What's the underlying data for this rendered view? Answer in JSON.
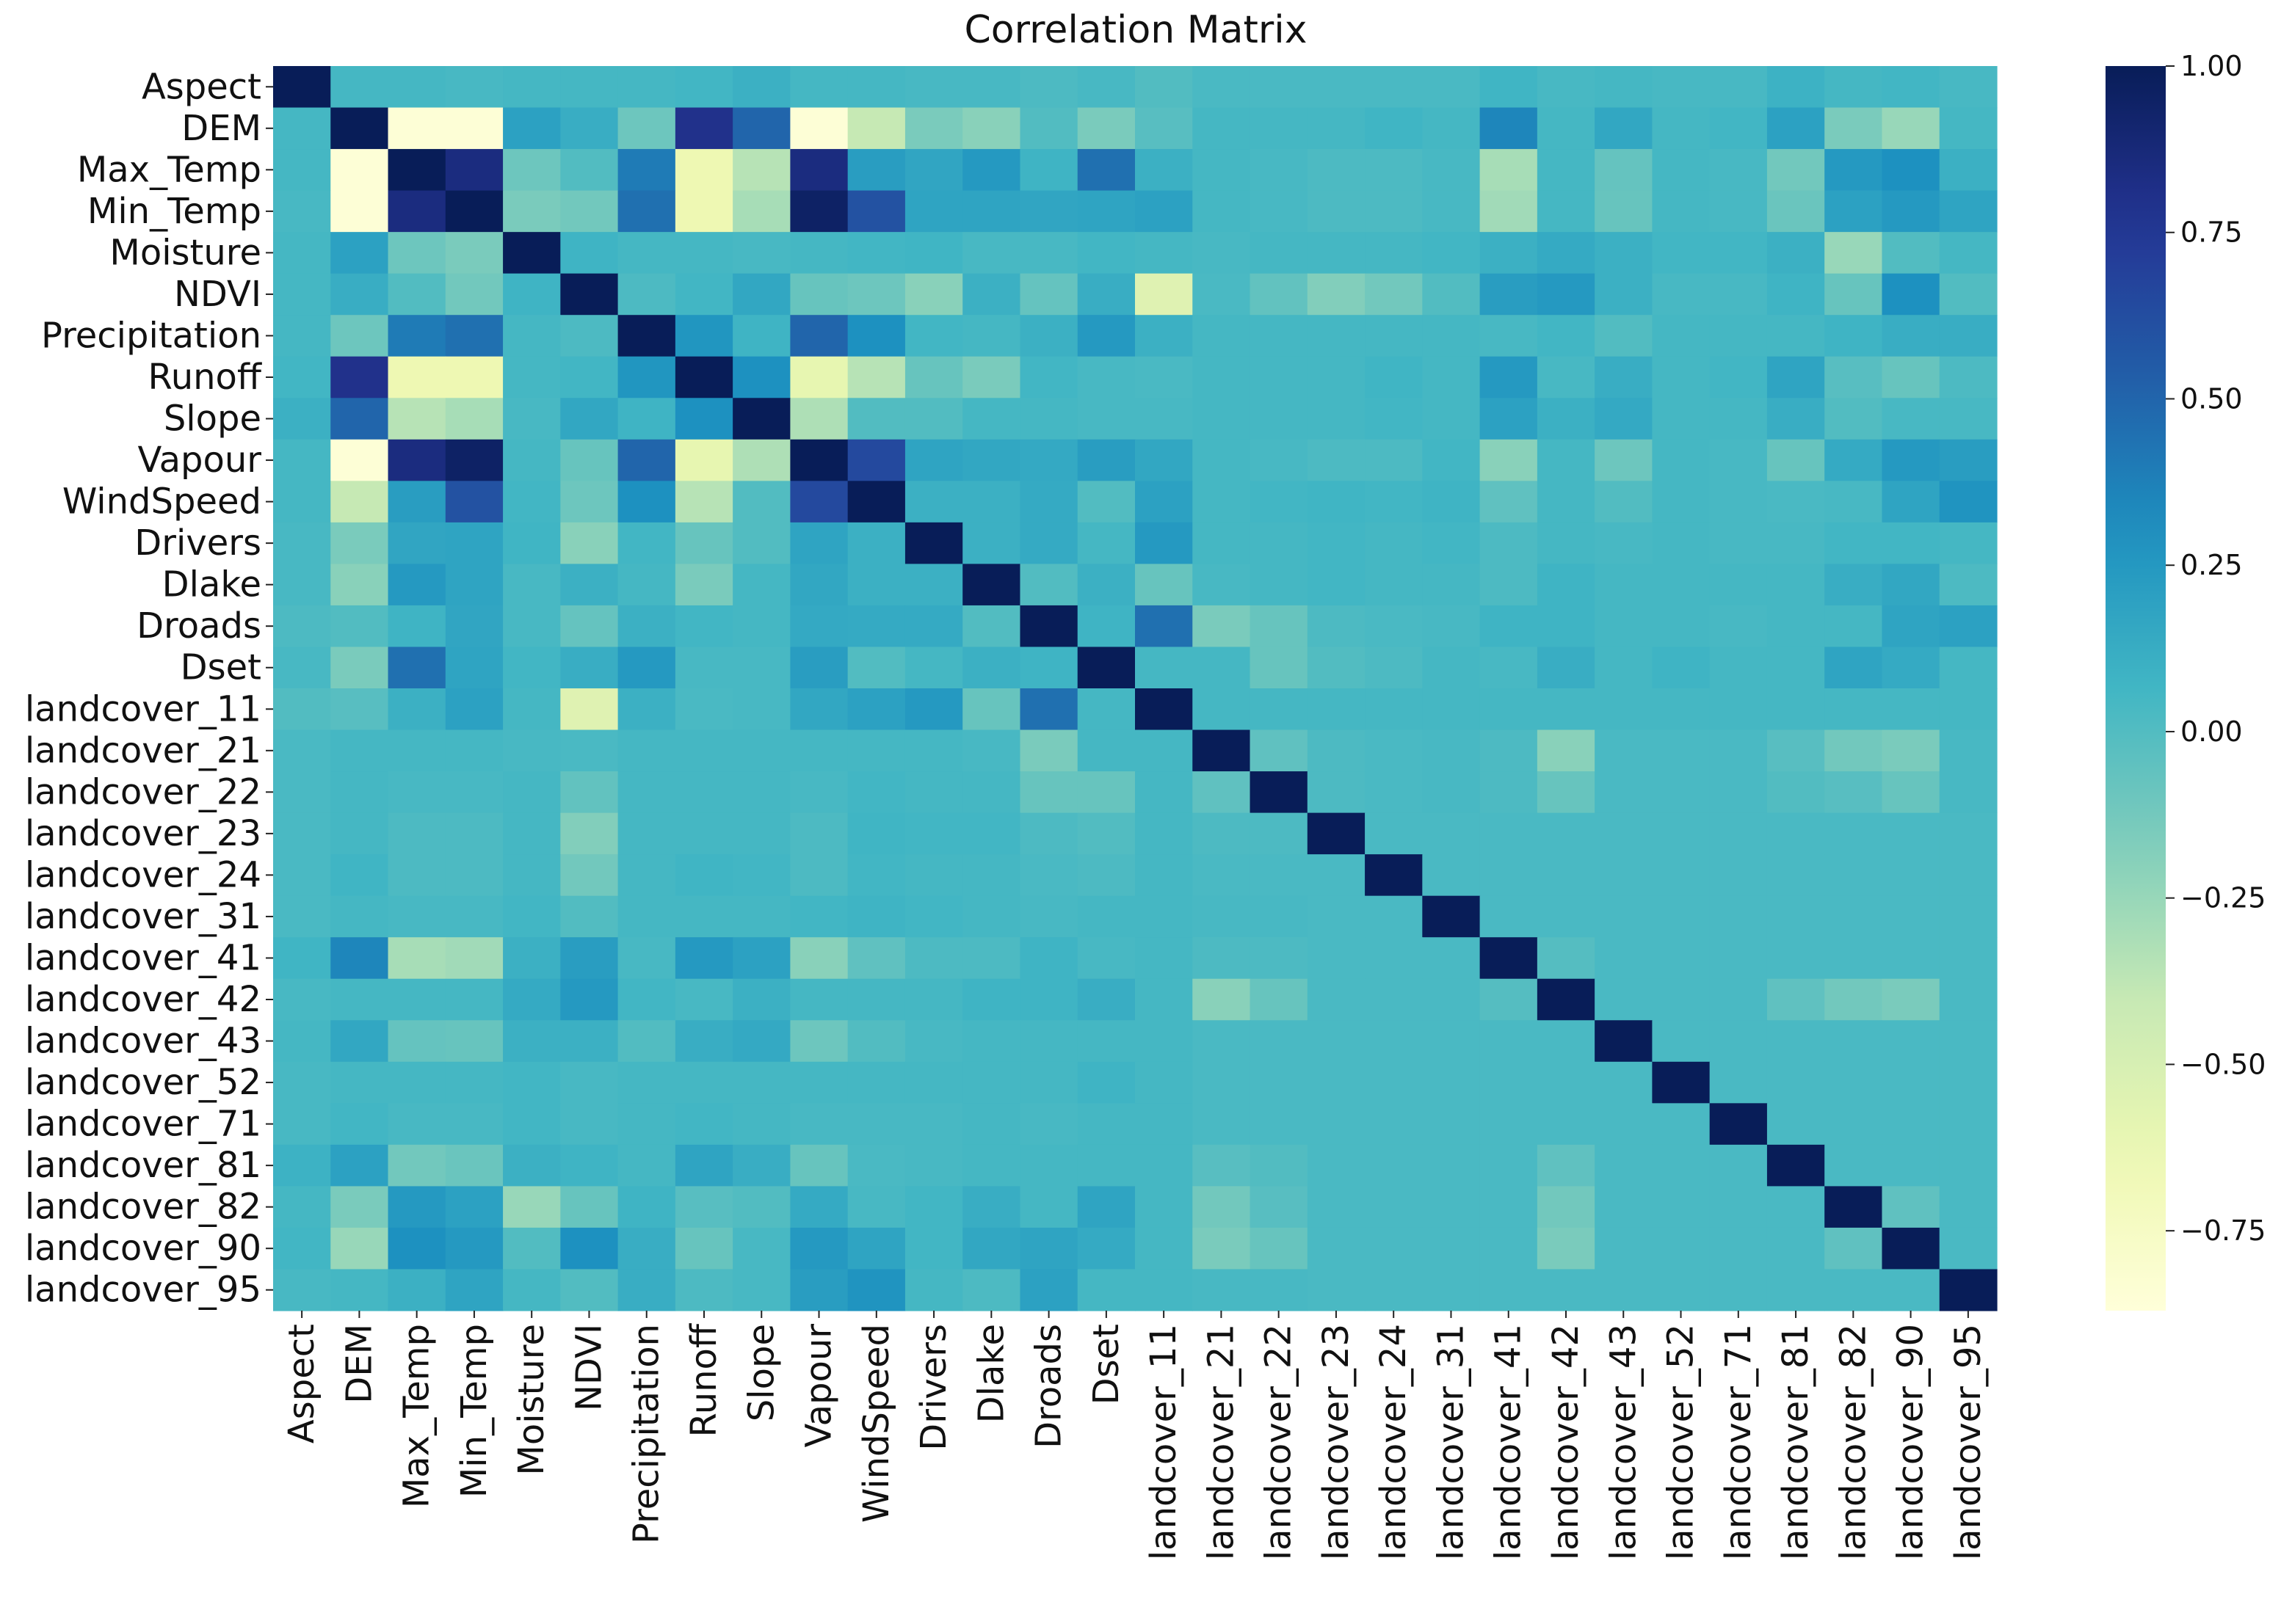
{
  "chart_data": {
    "type": "heatmap",
    "title": "Correlation Matrix",
    "xlabel": "",
    "ylabel": "",
    "colormap": "YlGnBu",
    "vmin": -0.87,
    "vmax": 1.0,
    "colorbar_ticks": [
      -0.75,
      -0.5,
      -0.25,
      0.0,
      0.25,
      0.5,
      0.75,
      1.0
    ],
    "colorbar_tick_labels": [
      "−0.75",
      "−0.50",
      "−0.25",
      "0.00",
      "0.25",
      "0.50",
      "0.75",
      "1.00"
    ],
    "labels": [
      "Aspect",
      "DEM",
      "Max_Temp",
      "Min_Temp",
      "Moisture",
      "NDVI",
      "Precipitation",
      "Runoff",
      "Slope",
      "Vapour",
      "WindSpeed",
      "Drivers",
      "Dlake",
      "Droads",
      "Dset",
      "landcover_11",
      "landcover_21",
      "landcover_22",
      "landcover_23",
      "landcover_24",
      "landcover_31",
      "landcover_41",
      "landcover_42",
      "landcover_43",
      "landcover_52",
      "landcover_71",
      "landcover_81",
      "landcover_82",
      "landcover_90",
      "landcover_95"
    ],
    "matrix": [
      [
        1.0,
        0.05,
        0.05,
        0.04,
        0.05,
        0.05,
        0.05,
        0.06,
        0.1,
        0.05,
        0.05,
        0.04,
        0.04,
        0.02,
        0.04,
        0.0,
        0.03,
        0.03,
        0.03,
        0.03,
        0.03,
        0.07,
        0.04,
        0.05,
        0.04,
        0.04,
        0.09,
        0.05,
        0.06,
        0.04
      ],
      [
        0.05,
        1.0,
        -0.85,
        -0.85,
        0.2,
        0.12,
        -0.1,
        0.8,
        0.5,
        -0.85,
        -0.4,
        -0.15,
        -0.2,
        0.0,
        -0.15,
        -0.02,
        0.05,
        0.05,
        0.05,
        0.07,
        0.05,
        0.35,
        0.05,
        0.16,
        0.05,
        0.06,
        0.2,
        -0.15,
        -0.25,
        0.05
      ],
      [
        0.05,
        -0.85,
        1.0,
        0.85,
        -0.1,
        0.0,
        0.4,
        -0.65,
        -0.35,
        0.85,
        0.22,
        0.17,
        0.25,
        0.08,
        0.45,
        0.1,
        0.05,
        0.04,
        0.02,
        0.02,
        0.04,
        -0.3,
        0.05,
        -0.07,
        0.05,
        0.04,
        -0.12,
        0.25,
        0.3,
        0.1
      ],
      [
        0.04,
        -0.85,
        0.85,
        1.0,
        -0.15,
        -0.12,
        0.45,
        -0.65,
        -0.3,
        0.95,
        0.6,
        0.18,
        0.18,
        0.17,
        0.18,
        0.2,
        0.05,
        0.04,
        0.02,
        0.02,
        0.04,
        -0.28,
        0.05,
        -0.08,
        0.05,
        0.04,
        -0.09,
        0.2,
        0.25,
        0.18
      ],
      [
        0.05,
        0.2,
        -0.1,
        -0.15,
        1.0,
        0.08,
        0.05,
        0.05,
        0.04,
        0.05,
        0.06,
        0.07,
        0.04,
        0.04,
        0.06,
        0.05,
        0.04,
        0.05,
        0.05,
        0.05,
        0.06,
        0.1,
        0.14,
        0.1,
        0.06,
        0.06,
        0.1,
        -0.25,
        0.0,
        0.05
      ],
      [
        0.05,
        0.12,
        0.0,
        -0.12,
        0.08,
        1.0,
        0.02,
        0.06,
        0.16,
        -0.08,
        -0.1,
        -0.2,
        0.1,
        -0.07,
        0.12,
        -0.55,
        0.03,
        -0.06,
        -0.18,
        -0.12,
        0.0,
        0.22,
        0.25,
        0.1,
        0.04,
        0.04,
        0.08,
        -0.08,
        0.3,
        0.0
      ],
      [
        0.05,
        -0.1,
        0.4,
        0.45,
        0.05,
        0.02,
        1.0,
        0.27,
        0.08,
        0.5,
        0.3,
        0.06,
        0.05,
        0.1,
        0.25,
        0.1,
        0.05,
        0.05,
        0.05,
        0.05,
        0.05,
        0.04,
        0.06,
        0.0,
        0.05,
        0.05,
        0.05,
        0.08,
        0.12,
        0.12
      ],
      [
        0.06,
        0.8,
        -0.65,
        -0.65,
        0.05,
        0.06,
        0.27,
        1.0,
        0.3,
        -0.6,
        -0.35,
        -0.08,
        -0.15,
        0.06,
        0.04,
        0.03,
        0.05,
        0.05,
        0.05,
        0.07,
        0.05,
        0.25,
        0.04,
        0.12,
        0.05,
        0.06,
        0.18,
        -0.02,
        -0.08,
        0.02
      ],
      [
        0.1,
        0.5,
        -0.35,
        -0.3,
        0.04,
        0.16,
        0.08,
        0.3,
        1.0,
        -0.32,
        0.0,
        0.0,
        0.05,
        0.05,
        0.04,
        0.04,
        0.05,
        0.05,
        0.05,
        0.06,
        0.05,
        0.2,
        0.1,
        0.15,
        0.05,
        0.05,
        0.12,
        0.0,
        0.04,
        0.04
      ],
      [
        0.05,
        -0.85,
        0.85,
        0.95,
        0.05,
        -0.08,
        0.5,
        -0.6,
        -0.32,
        1.0,
        0.65,
        0.18,
        0.16,
        0.15,
        0.22,
        0.16,
        0.05,
        0.04,
        0.02,
        0.02,
        0.06,
        -0.2,
        0.05,
        -0.1,
        0.05,
        0.04,
        -0.08,
        0.14,
        0.25,
        0.22
      ],
      [
        0.05,
        -0.4,
        0.22,
        0.6,
        0.06,
        -0.1,
        0.3,
        -0.35,
        0.0,
        0.65,
        1.0,
        0.1,
        0.1,
        0.14,
        0.0,
        0.2,
        0.05,
        0.06,
        0.07,
        0.06,
        0.08,
        -0.05,
        0.05,
        0.0,
        0.05,
        0.04,
        0.03,
        0.04,
        0.18,
        0.28
      ],
      [
        0.04,
        -0.15,
        0.17,
        0.18,
        0.07,
        -0.2,
        0.06,
        -0.08,
        0.0,
        0.18,
        0.1,
        1.0,
        0.1,
        0.14,
        0.05,
        0.25,
        0.05,
        0.05,
        0.06,
        0.05,
        0.06,
        0.02,
        0.05,
        0.04,
        0.05,
        0.04,
        0.04,
        0.06,
        0.06,
        0.05
      ],
      [
        0.04,
        -0.2,
        0.25,
        0.18,
        0.04,
        0.1,
        0.05,
        -0.15,
        0.05,
        0.16,
        0.1,
        0.1,
        1.0,
        0.0,
        0.1,
        -0.08,
        0.04,
        0.05,
        0.06,
        0.05,
        0.05,
        0.02,
        0.08,
        0.05,
        0.05,
        0.05,
        0.05,
        0.12,
        0.16,
        0.02
      ],
      [
        0.02,
        0.0,
        0.08,
        0.17,
        0.04,
        -0.07,
        0.1,
        0.06,
        0.05,
        0.15,
        0.14,
        0.14,
        0.0,
        1.0,
        0.08,
        0.45,
        -0.15,
        -0.08,
        0.02,
        0.03,
        0.04,
        0.08,
        0.08,
        0.05,
        0.05,
        0.04,
        0.05,
        0.05,
        0.18,
        0.2
      ],
      [
        0.04,
        -0.15,
        0.45,
        0.18,
        0.06,
        0.12,
        0.25,
        0.04,
        0.04,
        0.22,
        0.0,
        0.05,
        0.1,
        0.08,
        1.0,
        0.05,
        0.05,
        -0.08,
        0.0,
        0.02,
        0.05,
        0.04,
        0.12,
        0.05,
        0.08,
        0.05,
        0.05,
        0.18,
        0.14,
        0.05
      ],
      [
        0.0,
        -0.02,
        0.1,
        0.2,
        0.05,
        -0.55,
        0.1,
        0.03,
        0.04,
        0.16,
        0.2,
        0.25,
        -0.08,
        0.45,
        0.05,
        1.0,
        0.05,
        0.05,
        0.05,
        0.05,
        0.05,
        0.05,
        0.05,
        0.05,
        0.05,
        0.05,
        0.05,
        0.05,
        0.05,
        0.05
      ],
      [
        0.03,
        0.05,
        0.05,
        0.05,
        0.04,
        0.03,
        0.05,
        0.05,
        0.05,
        0.05,
        0.05,
        0.05,
        0.04,
        -0.15,
        0.05,
        0.05,
        1.0,
        -0.05,
        0.02,
        0.03,
        0.04,
        0.02,
        -0.2,
        0.03,
        0.03,
        0.03,
        -0.02,
        -0.12,
        -0.15,
        0.04
      ],
      [
        0.03,
        0.05,
        0.04,
        0.04,
        0.05,
        -0.06,
        0.05,
        0.05,
        0.05,
        0.04,
        0.06,
        0.05,
        0.05,
        -0.08,
        -0.08,
        0.05,
        -0.05,
        1.0,
        0.02,
        0.03,
        0.04,
        0.02,
        -0.08,
        0.03,
        0.03,
        0.03,
        0.0,
        -0.02,
        -0.08,
        0.04
      ],
      [
        0.03,
        0.05,
        0.02,
        0.02,
        0.05,
        -0.18,
        0.05,
        0.05,
        0.05,
        0.02,
        0.07,
        0.06,
        0.06,
        0.02,
        0.0,
        0.05,
        0.02,
        0.02,
        1.0,
        0.03,
        0.03,
        0.03,
        0.03,
        0.03,
        0.03,
        0.03,
        0.03,
        0.03,
        0.03,
        0.03
      ],
      [
        0.03,
        0.07,
        0.02,
        0.02,
        0.05,
        -0.12,
        0.05,
        0.07,
        0.06,
        0.02,
        0.06,
        0.05,
        0.05,
        0.03,
        0.02,
        0.05,
        0.03,
        0.03,
        0.03,
        1.0,
        0.03,
        0.03,
        0.03,
        0.03,
        0.03,
        0.03,
        0.03,
        0.03,
        0.03,
        0.03
      ],
      [
        0.03,
        0.05,
        0.04,
        0.04,
        0.06,
        0.0,
        0.05,
        0.05,
        0.05,
        0.06,
        0.08,
        0.06,
        0.05,
        0.04,
        0.05,
        0.05,
        0.04,
        0.04,
        0.03,
        0.03,
        1.0,
        0.03,
        0.03,
        0.03,
        0.03,
        0.03,
        0.03,
        0.03,
        0.03,
        0.03
      ],
      [
        0.07,
        0.35,
        -0.3,
        -0.28,
        0.1,
        0.22,
        0.04,
        0.25,
        0.2,
        -0.2,
        -0.05,
        0.02,
        0.02,
        0.08,
        0.04,
        0.05,
        0.02,
        0.02,
        0.03,
        0.03,
        0.03,
        1.0,
        -0.01,
        0.03,
        0.03,
        0.03,
        0.03,
        0.03,
        0.03,
        0.03
      ],
      [
        0.04,
        0.05,
        0.05,
        0.05,
        0.14,
        0.25,
        0.06,
        0.04,
        0.1,
        0.05,
        0.05,
        0.05,
        0.08,
        0.08,
        0.12,
        0.05,
        -0.2,
        -0.08,
        0.03,
        0.03,
        0.03,
        -0.01,
        1.0,
        0.03,
        0.03,
        0.03,
        -0.05,
        -0.12,
        -0.15,
        0.03
      ],
      [
        0.05,
        0.16,
        -0.07,
        -0.08,
        0.1,
        0.1,
        0.0,
        0.12,
        0.15,
        -0.1,
        0.0,
        0.04,
        0.05,
        0.05,
        0.05,
        0.05,
        0.03,
        0.03,
        0.03,
        0.03,
        0.03,
        0.03,
        0.03,
        1.0,
        0.03,
        0.03,
        0.03,
        0.03,
        0.03,
        0.03
      ],
      [
        0.04,
        0.05,
        0.05,
        0.05,
        0.06,
        0.04,
        0.05,
        0.05,
        0.05,
        0.05,
        0.05,
        0.05,
        0.05,
        0.05,
        0.08,
        0.05,
        0.03,
        0.03,
        0.03,
        0.03,
        0.03,
        0.03,
        0.03,
        0.03,
        1.0,
        0.03,
        0.03,
        0.03,
        0.03,
        0.03
      ],
      [
        0.04,
        0.06,
        0.04,
        0.04,
        0.06,
        0.04,
        0.05,
        0.06,
        0.05,
        0.04,
        0.04,
        0.04,
        0.05,
        0.04,
        0.05,
        0.05,
        0.03,
        0.03,
        0.03,
        0.03,
        0.03,
        0.03,
        0.03,
        0.03,
        0.03,
        1.0,
        0.03,
        0.03,
        0.03,
        0.03
      ],
      [
        0.09,
        0.2,
        -0.12,
        -0.09,
        0.1,
        0.08,
        0.05,
        0.18,
        0.12,
        -0.08,
        0.03,
        0.04,
        0.05,
        0.05,
        0.05,
        0.05,
        -0.02,
        0.0,
        0.03,
        0.03,
        0.03,
        0.03,
        -0.05,
        0.03,
        0.03,
        0.03,
        1.0,
        0.03,
        0.03,
        0.03
      ],
      [
        0.05,
        -0.15,
        0.25,
        0.2,
        -0.25,
        -0.08,
        0.08,
        -0.02,
        0.0,
        0.14,
        0.04,
        0.06,
        0.12,
        0.05,
        0.18,
        0.05,
        -0.12,
        -0.02,
        0.03,
        0.03,
        0.03,
        0.03,
        -0.12,
        0.03,
        0.03,
        0.03,
        0.03,
        1.0,
        -0.05,
        0.03
      ],
      [
        0.06,
        -0.25,
        0.3,
        0.25,
        0.0,
        0.3,
        0.12,
        -0.08,
        0.04,
        0.25,
        0.18,
        0.06,
        0.16,
        0.18,
        0.14,
        0.05,
        -0.15,
        -0.08,
        0.03,
        0.03,
        0.03,
        0.03,
        -0.15,
        0.03,
        0.03,
        0.03,
        0.03,
        -0.05,
        1.0,
        0.03
      ],
      [
        0.04,
        0.05,
        0.1,
        0.18,
        0.05,
        0.0,
        0.12,
        0.02,
        0.04,
        0.22,
        0.28,
        0.05,
        0.02,
        0.2,
        0.05,
        0.05,
        0.04,
        0.04,
        0.03,
        0.03,
        0.03,
        0.03,
        0.03,
        0.03,
        0.03,
        0.03,
        0.03,
        0.03,
        0.03,
        1.0
      ]
    ]
  }
}
